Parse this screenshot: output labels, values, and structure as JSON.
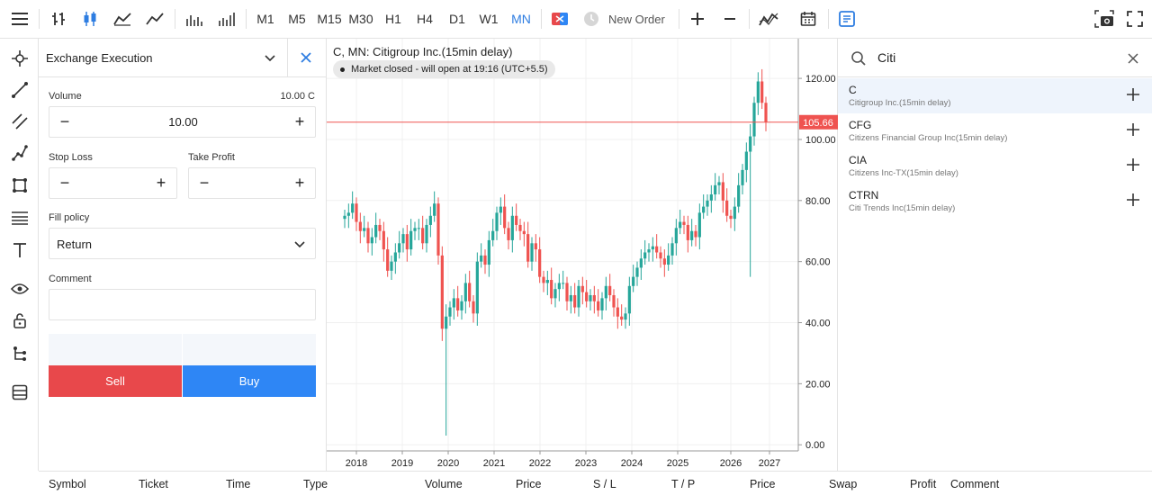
{
  "toolbar": {
    "timeframes": [
      "M1",
      "M5",
      "M15",
      "M30",
      "H1",
      "H4",
      "D1",
      "W1",
      "MN"
    ],
    "active_timeframe": "MN",
    "new_order_label": "New Order"
  },
  "order_panel": {
    "execution_type": "Exchange Execution",
    "volume_label": "Volume",
    "volume_hint": "10.00 C",
    "volume_value": "10.00",
    "stop_loss_label": "Stop Loss",
    "stop_loss_value": "",
    "take_profit_label": "Take Profit",
    "take_profit_value": "",
    "fill_policy_label": "Fill policy",
    "fill_policy_value": "Return",
    "comment_label": "Comment",
    "comment_value": "",
    "sell_label": "Sell",
    "buy_label": "Buy",
    "colors": {
      "sell": "#e8484b",
      "buy": "#2e86f5"
    }
  },
  "chart": {
    "title": "C, MN: Citigroup Inc.(15min delay)",
    "market_status": "Market closed - will open at 19:16 (UTC+5.5)",
    "current_price": "105.66",
    "colors": {
      "up": "#26a69a",
      "down": "#ef5350",
      "price_line": "#ef5350"
    }
  },
  "chart_data": {
    "type": "candlestick",
    "title": "C, MN: Citigroup Inc.(15min delay)",
    "x_tick_labels": [
      "2018",
      "2019",
      "2020",
      "2021",
      "2022",
      "2023",
      "2024",
      "2025",
      "2026",
      "2027"
    ],
    "y_tick_labels": [
      "0.00",
      "20.00",
      "40.00",
      "60.00",
      "80.00",
      "100.00",
      "120.00"
    ],
    "ylim": [
      -2,
      133
    ],
    "last_price": 105.66,
    "grid": true,
    "approx_monthly_close": [
      75,
      76,
      79,
      73,
      70,
      71,
      66,
      68,
      72,
      70,
      64,
      57,
      60,
      63,
      66,
      69,
      64,
      70,
      71,
      71,
      66,
      72,
      75,
      79,
      62,
      38,
      42,
      45,
      48,
      44,
      47,
      53,
      47,
      43,
      60,
      62,
      59,
      67,
      70,
      76,
      78,
      71,
      67,
      75,
      72,
      70,
      69,
      60,
      66,
      64,
      55,
      53,
      54,
      48,
      51,
      53,
      53,
      47,
      49,
      45,
      52,
      50,
      47,
      49,
      47,
      44,
      48,
      52,
      49,
      45,
      42,
      41,
      43,
      52,
      55,
      58,
      61,
      63,
      64,
      65,
      63,
      61,
      59,
      62,
      66,
      71,
      73,
      72,
      67,
      70,
      68,
      76,
      78,
      80,
      82,
      85,
      86,
      80,
      75,
      74,
      78,
      85,
      90,
      96,
      101,
      112,
      119,
      112,
      105.66
    ]
  },
  "symbols": {
    "search_query": "Citi",
    "items": [
      {
        "code": "C",
        "description": "Citigroup Inc.(15min delay)"
      },
      {
        "code": "CFG",
        "description": "Citizens Financial Group Inc(15min delay)"
      },
      {
        "code": "CIA",
        "description": "Citizens Inc-TX(15min delay)"
      },
      {
        "code": "CTRN",
        "description": "Citi Trends Inc(15min delay)"
      }
    ]
  },
  "bottom_columns": [
    "Symbol",
    "Ticket",
    "Time",
    "Type",
    "Volume",
    "Price",
    "S / L",
    "T / P",
    "Price",
    "Swap",
    "Profit",
    "Comment"
  ]
}
